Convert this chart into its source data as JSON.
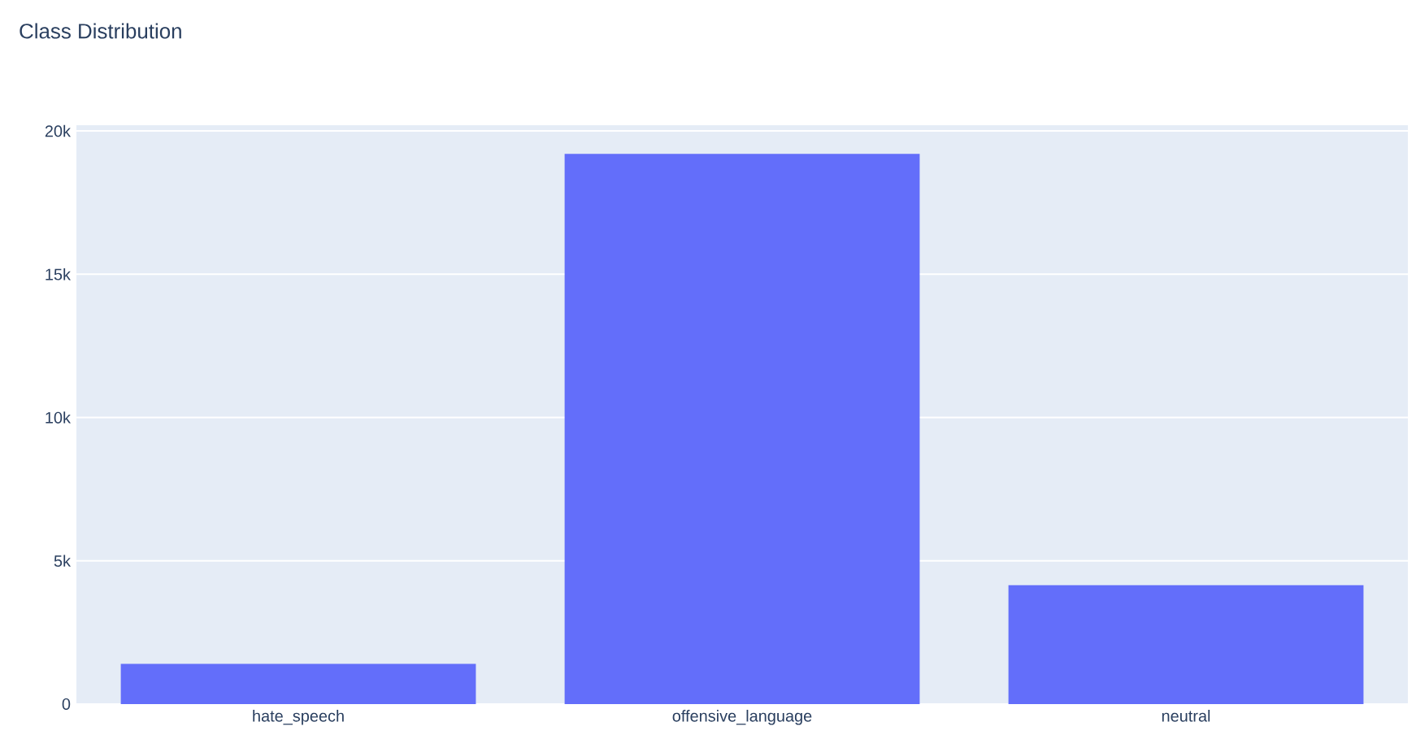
{
  "chart_data": {
    "type": "bar",
    "title": "Class Distribution",
    "categories": [
      "hate_speech",
      "offensive_language",
      "neutral"
    ],
    "values": [
      1400,
      19200,
      4150
    ],
    "color": "#636efa",
    "ylim": [
      0,
      20200
    ],
    "yticks": [
      {
        "value": 0,
        "label": "0"
      },
      {
        "value": 5000,
        "label": "5k"
      },
      {
        "value": 10000,
        "label": "10k"
      },
      {
        "value": 15000,
        "label": "15k"
      },
      {
        "value": 20000,
        "label": "20k"
      }
    ],
    "grid": "y"
  }
}
